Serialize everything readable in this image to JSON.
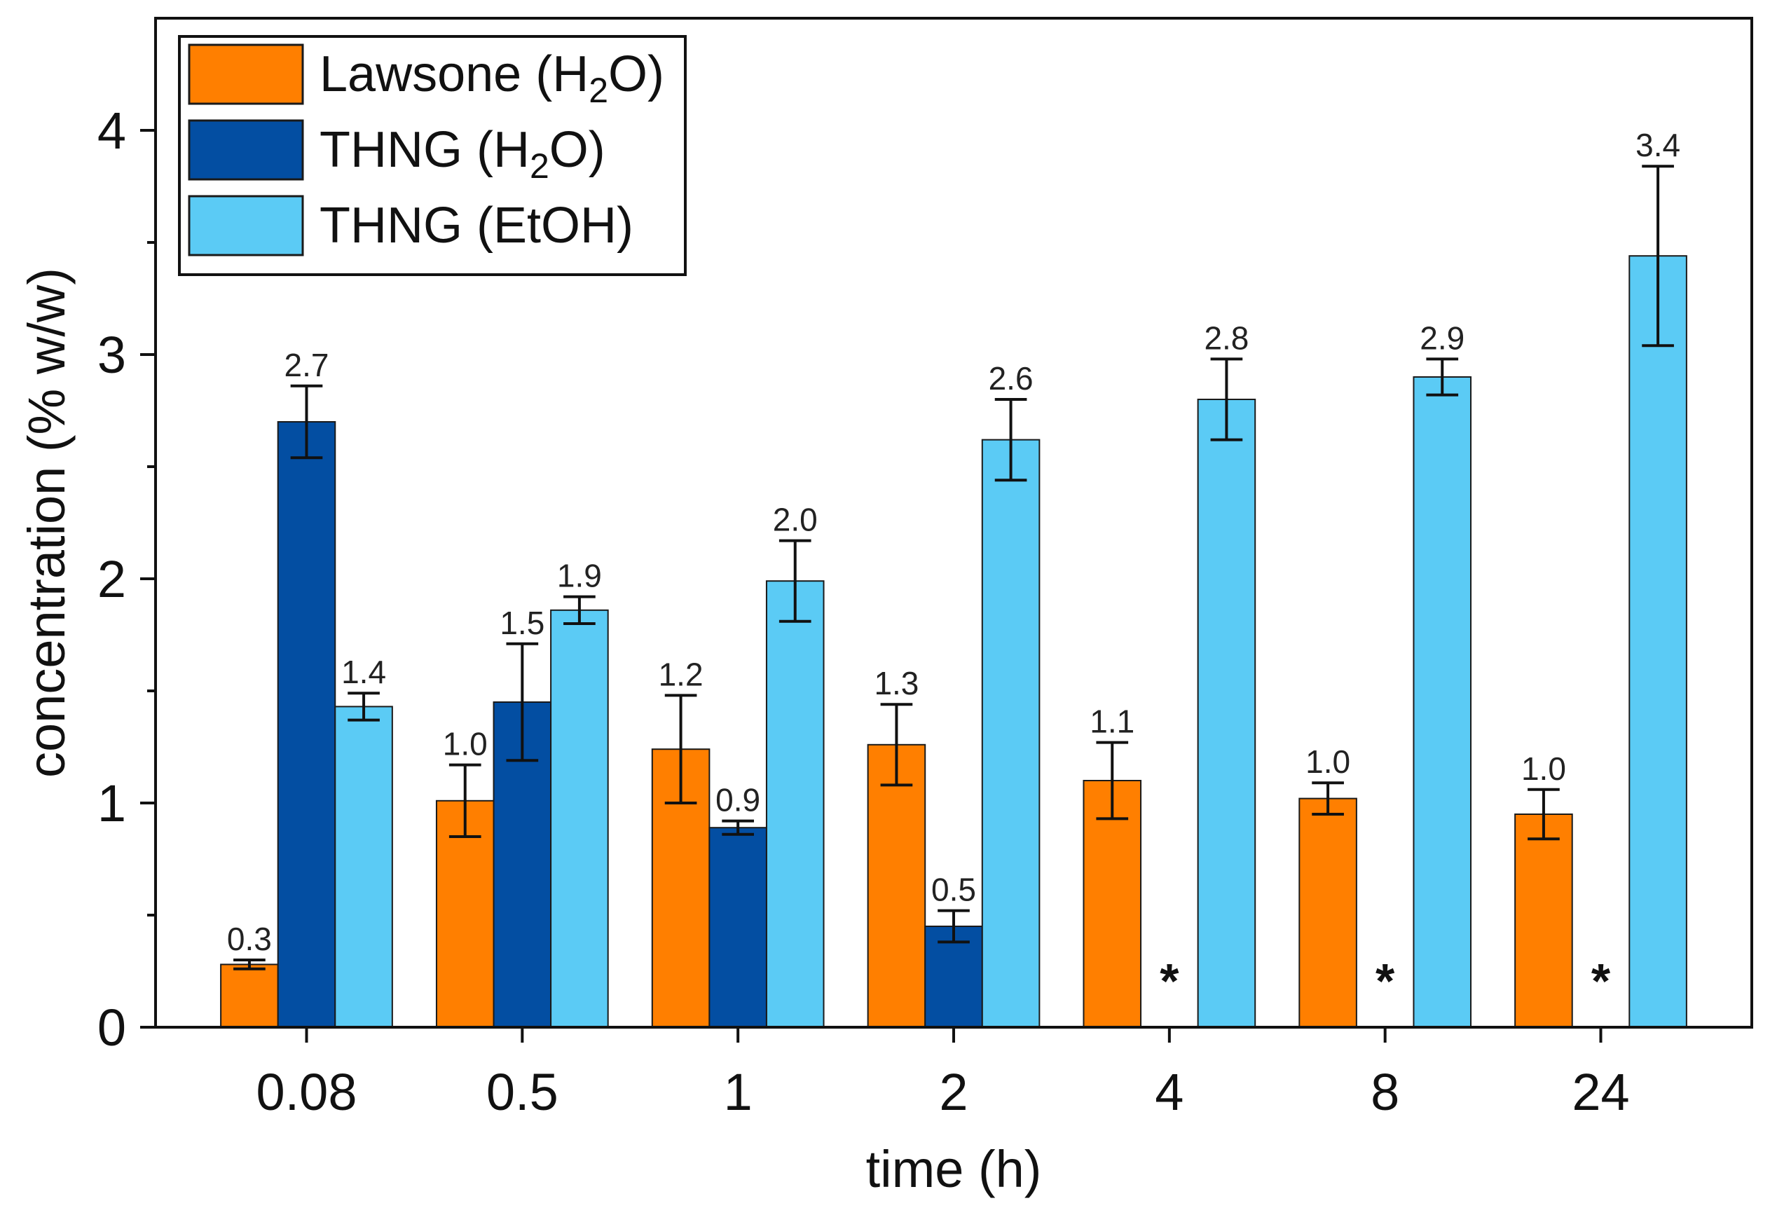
{
  "chart_data": {
    "type": "bar",
    "title": "",
    "xlabel": "time (h)",
    "ylabel": "concentration (% w/w)",
    "ylim": [
      0,
      4.5
    ],
    "yticks": [
      "0",
      "1",
      "2",
      "3",
      "4"
    ],
    "categories": [
      "0.08",
      "0.5",
      "1",
      "2",
      "4",
      "8",
      "24"
    ],
    "legend_position": "top-left",
    "series": [
      {
        "name": "Lawsone (H2O)",
        "legend_main": "Lawsone (H",
        "legend_sub": "2",
        "legend_tail": "O)",
        "color": "#ff7f00",
        "values": [
          0.28,
          1.01,
          1.24,
          1.26,
          1.1,
          1.02,
          0.95
        ],
        "errors": [
          0.02,
          0.16,
          0.24,
          0.18,
          0.17,
          0.07,
          0.11
        ],
        "labels": [
          "0.3",
          "1.0",
          "1.2",
          "1.3",
          "1.1",
          "1.0",
          "1.0"
        ]
      },
      {
        "name": "THNG (H2O)",
        "legend_main": "THNG (H",
        "legend_sub": "2",
        "legend_tail": "O)",
        "color": "#034ea2",
        "values": [
          2.7,
          1.45,
          0.89,
          0.45,
          null,
          null,
          null
        ],
        "errors": [
          0.16,
          0.26,
          0.03,
          0.07,
          null,
          null,
          null
        ],
        "labels": [
          "2.7",
          "1.5",
          "0.9",
          "0.5",
          "*",
          "*",
          "*"
        ]
      },
      {
        "name": "THNG (EtOH)",
        "legend_main": "THNG (EtOH)",
        "legend_sub": "",
        "legend_tail": "",
        "color": "#5bcbf5",
        "values": [
          1.43,
          1.86,
          1.99,
          2.62,
          2.8,
          2.9,
          3.44
        ],
        "errors": [
          0.06,
          0.06,
          0.18,
          0.18,
          0.18,
          0.08,
          0.4
        ],
        "labels": [
          "1.4",
          "1.9",
          "2.0",
          "2.6",
          "2.8",
          "2.9",
          "3.4"
        ]
      }
    ]
  }
}
